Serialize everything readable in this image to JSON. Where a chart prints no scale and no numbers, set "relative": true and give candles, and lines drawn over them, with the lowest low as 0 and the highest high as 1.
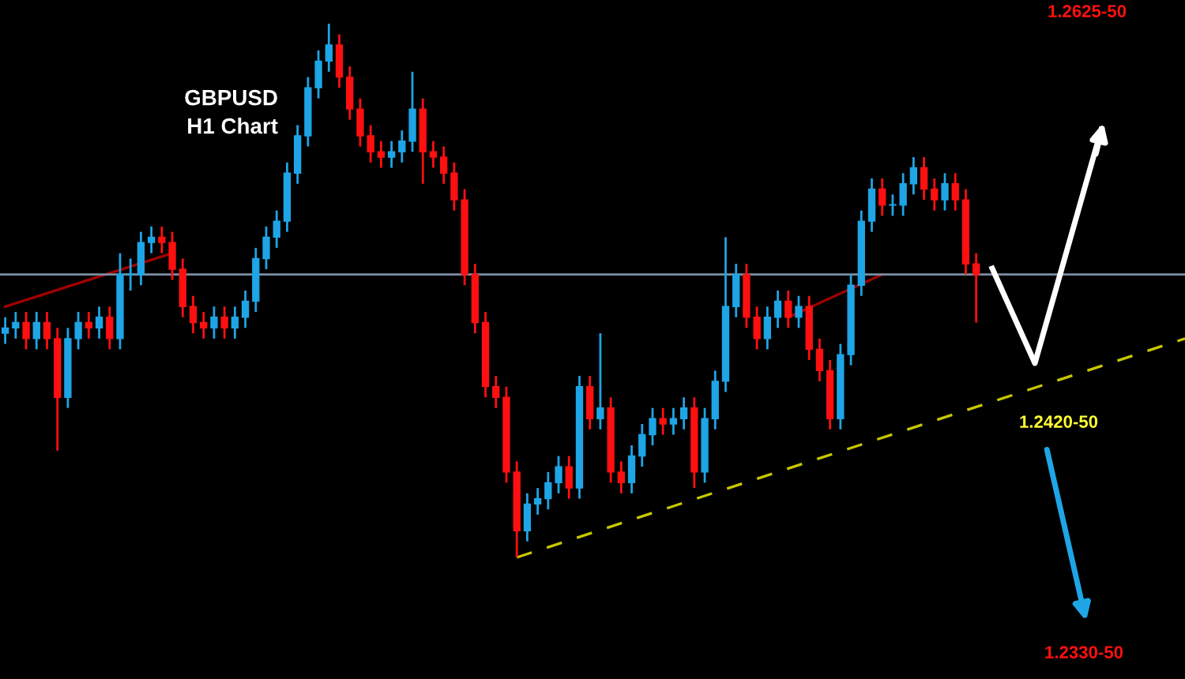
{
  "chart_data": {
    "type": "candlestick",
    "title": "GBPUSD\nH1 Chart",
    "relative": true,
    "grid": false,
    "legend": false,
    "categories": [
      null,
      null,
      null,
      null,
      null,
      null,
      null,
      null,
      null,
      null,
      null,
      null,
      null,
      null,
      null,
      null,
      null,
      null,
      null,
      null,
      null,
      null,
      null,
      null,
      null,
      null,
      null,
      null,
      null,
      null,
      null,
      null,
      null,
      null,
      null,
      null,
      null,
      null,
      null,
      null,
      null,
      null,
      null,
      null,
      null,
      null,
      null,
      null,
      null,
      null,
      null,
      null,
      null,
      null,
      null,
      null,
      null,
      null,
      null,
      null,
      null,
      null,
      null,
      null,
      null,
      null,
      null,
      null,
      null,
      null,
      null,
      null,
      null,
      null,
      null,
      null,
      null,
      null,
      null,
      null,
      null,
      null,
      null,
      null,
      null,
      null,
      null,
      null,
      null,
      null,
      null,
      null,
      null,
      null,
      null,
      null,
      null,
      null,
      null,
      null,
      null,
      null,
      null,
      null,
      null,
      null,
      null,
      null,
      null,
      null,
      null,
      null,
      null,
      null
    ],
    "ohlc": [
      [
        0.42,
        0.45,
        0.4,
        0.43
      ],
      [
        0.43,
        0.46,
        0.41,
        0.44
      ],
      [
        0.44,
        0.46,
        0.39,
        0.41
      ],
      [
        0.41,
        0.46,
        0.39,
        0.44
      ],
      [
        0.44,
        0.46,
        0.39,
        0.41
      ],
      [
        0.41,
        0.43,
        0.2,
        0.3
      ],
      [
        0.3,
        0.43,
        0.28,
        0.41
      ],
      [
        0.41,
        0.46,
        0.39,
        0.44
      ],
      [
        0.44,
        0.46,
        0.41,
        0.43
      ],
      [
        0.43,
        0.47,
        0.41,
        0.45
      ],
      [
        0.45,
        0.47,
        0.39,
        0.41
      ],
      [
        0.41,
        0.57,
        0.39,
        0.53
      ],
      [
        0.53,
        0.56,
        0.5,
        0.53
      ],
      [
        0.53,
        0.61,
        0.51,
        0.59
      ],
      [
        0.59,
        0.62,
        0.57,
        0.6
      ],
      [
        0.6,
        0.62,
        0.57,
        0.59
      ],
      [
        0.59,
        0.61,
        0.52,
        0.54
      ],
      [
        0.54,
        0.56,
        0.45,
        0.47
      ],
      [
        0.47,
        0.49,
        0.42,
        0.44
      ],
      [
        0.44,
        0.46,
        0.41,
        0.43
      ],
      [
        0.43,
        0.47,
        0.41,
        0.45
      ],
      [
        0.45,
        0.47,
        0.41,
        0.43
      ],
      [
        0.43,
        0.47,
        0.41,
        0.45
      ],
      [
        0.45,
        0.5,
        0.43,
        0.48
      ],
      [
        0.48,
        0.58,
        0.46,
        0.56
      ],
      [
        0.56,
        0.62,
        0.54,
        0.6
      ],
      [
        0.6,
        0.65,
        0.58,
        0.63
      ],
      [
        0.63,
        0.74,
        0.61,
        0.72
      ],
      [
        0.72,
        0.81,
        0.7,
        0.79
      ],
      [
        0.79,
        0.9,
        0.77,
        0.88
      ],
      [
        0.88,
        0.95,
        0.86,
        0.93
      ],
      [
        0.93,
        1.0,
        0.91,
        0.96
      ],
      [
        0.96,
        0.98,
        0.88,
        0.9
      ],
      [
        0.9,
        0.92,
        0.82,
        0.84
      ],
      [
        0.84,
        0.86,
        0.77,
        0.79
      ],
      [
        0.79,
        0.81,
        0.74,
        0.76
      ],
      [
        0.76,
        0.78,
        0.73,
        0.75
      ],
      [
        0.75,
        0.78,
        0.73,
        0.76
      ],
      [
        0.76,
        0.8,
        0.74,
        0.78
      ],
      [
        0.78,
        0.91,
        0.76,
        0.84
      ],
      [
        0.84,
        0.86,
        0.7,
        0.76
      ],
      [
        0.76,
        0.78,
        0.73,
        0.75
      ],
      [
        0.75,
        0.77,
        0.7,
        0.72
      ],
      [
        0.72,
        0.74,
        0.65,
        0.67
      ],
      [
        0.67,
        0.69,
        0.51,
        0.53
      ],
      [
        0.53,
        0.55,
        0.42,
        0.44
      ],
      [
        0.44,
        0.46,
        0.3,
        0.32
      ],
      [
        0.32,
        0.34,
        0.28,
        0.3
      ],
      [
        0.3,
        0.32,
        0.14,
        0.16
      ],
      [
        0.16,
        0.18,
        0.0,
        0.05
      ],
      [
        0.05,
        0.12,
        0.03,
        0.1
      ],
      [
        0.1,
        0.13,
        0.08,
        0.11
      ],
      [
        0.11,
        0.16,
        0.09,
        0.14
      ],
      [
        0.14,
        0.19,
        0.12,
        0.17
      ],
      [
        0.17,
        0.19,
        0.11,
        0.13
      ],
      [
        0.13,
        0.34,
        0.11,
        0.32
      ],
      [
        0.32,
        0.34,
        0.24,
        0.26
      ],
      [
        0.26,
        0.42,
        0.24,
        0.28
      ],
      [
        0.28,
        0.3,
        0.14,
        0.16
      ],
      [
        0.16,
        0.18,
        0.12,
        0.14
      ],
      [
        0.14,
        0.21,
        0.12,
        0.19
      ],
      [
        0.19,
        0.25,
        0.17,
        0.23
      ],
      [
        0.23,
        0.28,
        0.21,
        0.26
      ],
      [
        0.26,
        0.28,
        0.23,
        0.25
      ],
      [
        0.25,
        0.28,
        0.23,
        0.26
      ],
      [
        0.26,
        0.3,
        0.24,
        0.28
      ],
      [
        0.28,
        0.3,
        0.13,
        0.16
      ],
      [
        0.16,
        0.28,
        0.14,
        0.26
      ],
      [
        0.26,
        0.35,
        0.24,
        0.33
      ],
      [
        0.33,
        0.6,
        0.31,
        0.47
      ],
      [
        0.47,
        0.55,
        0.45,
        0.53
      ],
      [
        0.53,
        0.55,
        0.43,
        0.45
      ],
      [
        0.45,
        0.47,
        0.39,
        0.41
      ],
      [
        0.41,
        0.47,
        0.39,
        0.45
      ],
      [
        0.45,
        0.5,
        0.43,
        0.48
      ],
      [
        0.48,
        0.5,
        0.43,
        0.45
      ],
      [
        0.45,
        0.49,
        0.43,
        0.47
      ],
      [
        0.47,
        0.49,
        0.37,
        0.39
      ],
      [
        0.39,
        0.41,
        0.33,
        0.35
      ],
      [
        0.35,
        0.37,
        0.24,
        0.26
      ],
      [
        0.26,
        0.4,
        0.24,
        0.38
      ],
      [
        0.38,
        0.53,
        0.36,
        0.51
      ],
      [
        0.51,
        0.65,
        0.49,
        0.63
      ],
      [
        0.63,
        0.71,
        0.61,
        0.69
      ],
      [
        0.69,
        0.71,
        0.64,
        0.66
      ],
      [
        0.66,
        0.68,
        0.64,
        0.66
      ],
      [
        0.66,
        0.72,
        0.64,
        0.7
      ],
      [
        0.7,
        0.75,
        0.68,
        0.73
      ],
      [
        0.73,
        0.75,
        0.67,
        0.69
      ],
      [
        0.69,
        0.71,
        0.65,
        0.67
      ],
      [
        0.67,
        0.72,
        0.65,
        0.7
      ],
      [
        0.7,
        0.72,
        0.65,
        0.67
      ],
      [
        0.67,
        0.69,
        0.53,
        0.55
      ],
      [
        0.55,
        0.57,
        0.44,
        0.53
      ],
      null,
      null,
      null,
      null,
      null,
      null,
      null,
      null,
      null,
      null,
      null,
      null,
      null,
      null,
      null,
      null,
      null,
      null,
      null,
      null
    ],
    "series": [
      {
        "type": "line",
        "values": [
          null,
          null,
          null,
          null,
          null,
          null,
          null,
          null,
          null,
          null,
          null,
          null,
          null,
          null,
          null,
          null,
          null,
          null,
          null,
          null,
          null,
          null,
          null,
          null,
          null,
          null,
          null,
          null,
          null,
          null,
          null,
          null,
          null,
          null,
          null,
          null,
          null,
          null,
          null,
          null,
          null,
          null,
          null,
          null,
          null,
          null,
          null,
          null,
          null,
          0.0,
          null,
          null,
          null,
          null,
          null,
          null,
          null,
          null,
          null,
          null,
          null,
          null,
          null,
          null,
          null,
          null,
          null,
          null,
          null,
          null,
          null,
          null,
          null,
          null,
          null,
          null,
          null,
          null,
          null,
          null,
          null,
          null,
          null,
          null,
          null,
          null,
          null,
          null,
          null,
          null,
          null,
          null,
          null,
          null,
          null,
          null,
          null,
          null,
          null,
          null,
          null,
          null,
          null,
          null,
          null,
          null,
          null,
          null,
          null,
          null,
          null,
          null,
          null,
          0.41
        ],
        "color": "#c8c800",
        "line_style": "dashed"
      },
      {
        "type": "line",
        "values": [
          0.47,
          null,
          null,
          null,
          null,
          null,
          null,
          null,
          null,
          null,
          null,
          null,
          null,
          null,
          null,
          null,
          0.57,
          null,
          null,
          null,
          null,
          null,
          null,
          null,
          null,
          null,
          null,
          null,
          null,
          null,
          null,
          null,
          null,
          null,
          null,
          null,
          null,
          null,
          null,
          null,
          null,
          null,
          null,
          null,
          null,
          null,
          null,
          null,
          null,
          null,
          null,
          null,
          null,
          null,
          null,
          null,
          null,
          null,
          null,
          null,
          null,
          null,
          null,
          null,
          null,
          null,
          null,
          null,
          null,
          null,
          null,
          null,
          null,
          null,
          null,
          null,
          null,
          null,
          null,
          null,
          null,
          null,
          null,
          null,
          null,
          null,
          null,
          null,
          null,
          null,
          null,
          null,
          null,
          null,
          null,
          null,
          null,
          null,
          null,
          null,
          null,
          null,
          null,
          null,
          null,
          null,
          null,
          null,
          null,
          null,
          null,
          null,
          null,
          null
        ],
        "color": "#a00000",
        "line_style": "solid"
      },
      {
        "type": "line",
        "values": [
          null,
          null,
          null,
          null,
          null,
          null,
          null,
          null,
          null,
          null,
          null,
          null,
          null,
          null,
          null,
          null,
          null,
          null,
          null,
          null,
          null,
          null,
          null,
          null,
          null,
          null,
          null,
          null,
          null,
          null,
          null,
          null,
          null,
          null,
          null,
          null,
          null,
          null,
          null,
          null,
          null,
          null,
          null,
          null,
          null,
          null,
          null,
          null,
          null,
          null,
          null,
          null,
          null,
          null,
          null,
          null,
          null,
          null,
          null,
          null,
          null,
          null,
          null,
          null,
          null,
          null,
          null,
          null,
          null,
          null,
          null,
          null,
          null,
          null,
          null,
          0.45,
          null,
          null,
          null,
          null,
          null,
          null,
          null,
          null,
          0.53,
          null,
          null,
          null,
          null,
          null,
          null,
          null,
          null,
          null,
          null,
          null,
          null,
          null,
          null,
          null,
          null,
          null,
          null,
          null,
          null,
          null,
          null,
          null,
          null,
          null,
          null,
          null,
          null,
          null
        ],
        "color": "#a00000",
        "line_style": "solid"
      }
    ],
    "ref_lines": [
      {
        "axis": "y",
        "value": 0.53,
        "color": "#7b8fa3"
      }
    ],
    "annotations": [
      "1.2625-50",
      "1.2420-50",
      "1.2330-50"
    ]
  }
}
